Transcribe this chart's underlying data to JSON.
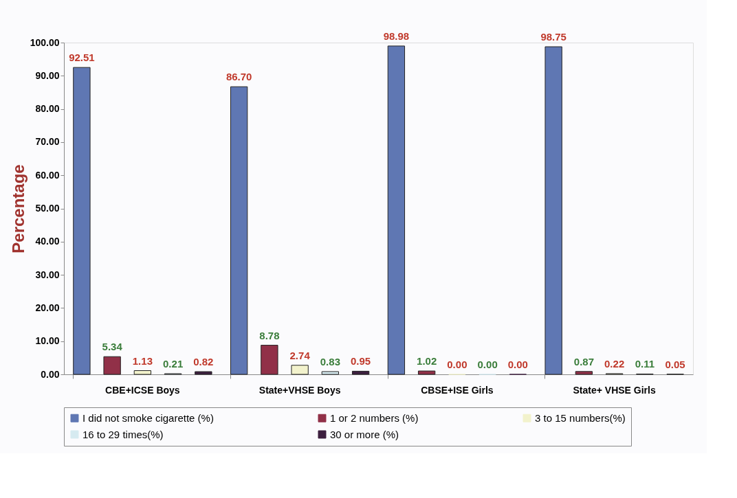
{
  "chart_data": {
    "type": "bar",
    "ylabel": "Percentage",
    "categories": [
      "CBE+ICSE Boys",
      "State+VHSE Boys",
      "CBSE+ISE Girls",
      "State+ VHSE Girls"
    ],
    "series": [
      {
        "name": "I did not smoke cigarette (%)",
        "color": "#5f77b3",
        "values": [
          92.51,
          86.7,
          98.98,
          98.75
        ],
        "value_labels": [
          "92.51",
          "86.70",
          "98.98",
          "98.75"
        ]
      },
      {
        "name": "1 or 2 numbers (%)",
        "color": "#913048",
        "values": [
          5.34,
          8.78,
          1.02,
          0.87
        ],
        "value_labels": [
          "5.34",
          "8.78",
          "1.02",
          "0.87"
        ]
      },
      {
        "name": "3 to 15 numbers(%)",
        "color": "#f2f2cc",
        "values": [
          1.13,
          2.74,
          0.0,
          0.22
        ],
        "value_labels": [
          "1.13",
          "2.74",
          "0.00",
          "0.22"
        ]
      },
      {
        "name": "16 to 29 times(%)",
        "color": "#d6eaf0",
        "values": [
          0.21,
          0.83,
          0.0,
          0.11
        ],
        "value_labels": [
          "0.21",
          "0.83",
          "0.00",
          "0.11"
        ]
      },
      {
        "name": "30 or more (%)",
        "color": "#3d1f3f",
        "values": [
          0.82,
          0.95,
          0.0,
          0.05
        ],
        "value_labels": [
          "0.82",
          "0.95",
          "0.00",
          "0.05"
        ]
      }
    ],
    "ylim": [
      0,
      100
    ],
    "yticks": [
      {
        "value": 0,
        "label": "0.00"
      },
      {
        "value": 10,
        "label": "10.00"
      },
      {
        "value": 20,
        "label": "20.00"
      },
      {
        "value": 30,
        "label": "30.00"
      },
      {
        "value": 40,
        "label": "40.00"
      },
      {
        "value": 50,
        "label": "50.00"
      },
      {
        "value": 60,
        "label": "60.00"
      },
      {
        "value": 70,
        "label": "70.00"
      },
      {
        "value": 80,
        "label": "80.00"
      },
      {
        "value": 90,
        "label": "90.00"
      },
      {
        "value": 100,
        "label": "100.00"
      }
    ],
    "grid": false,
    "legend": "bottom"
  }
}
